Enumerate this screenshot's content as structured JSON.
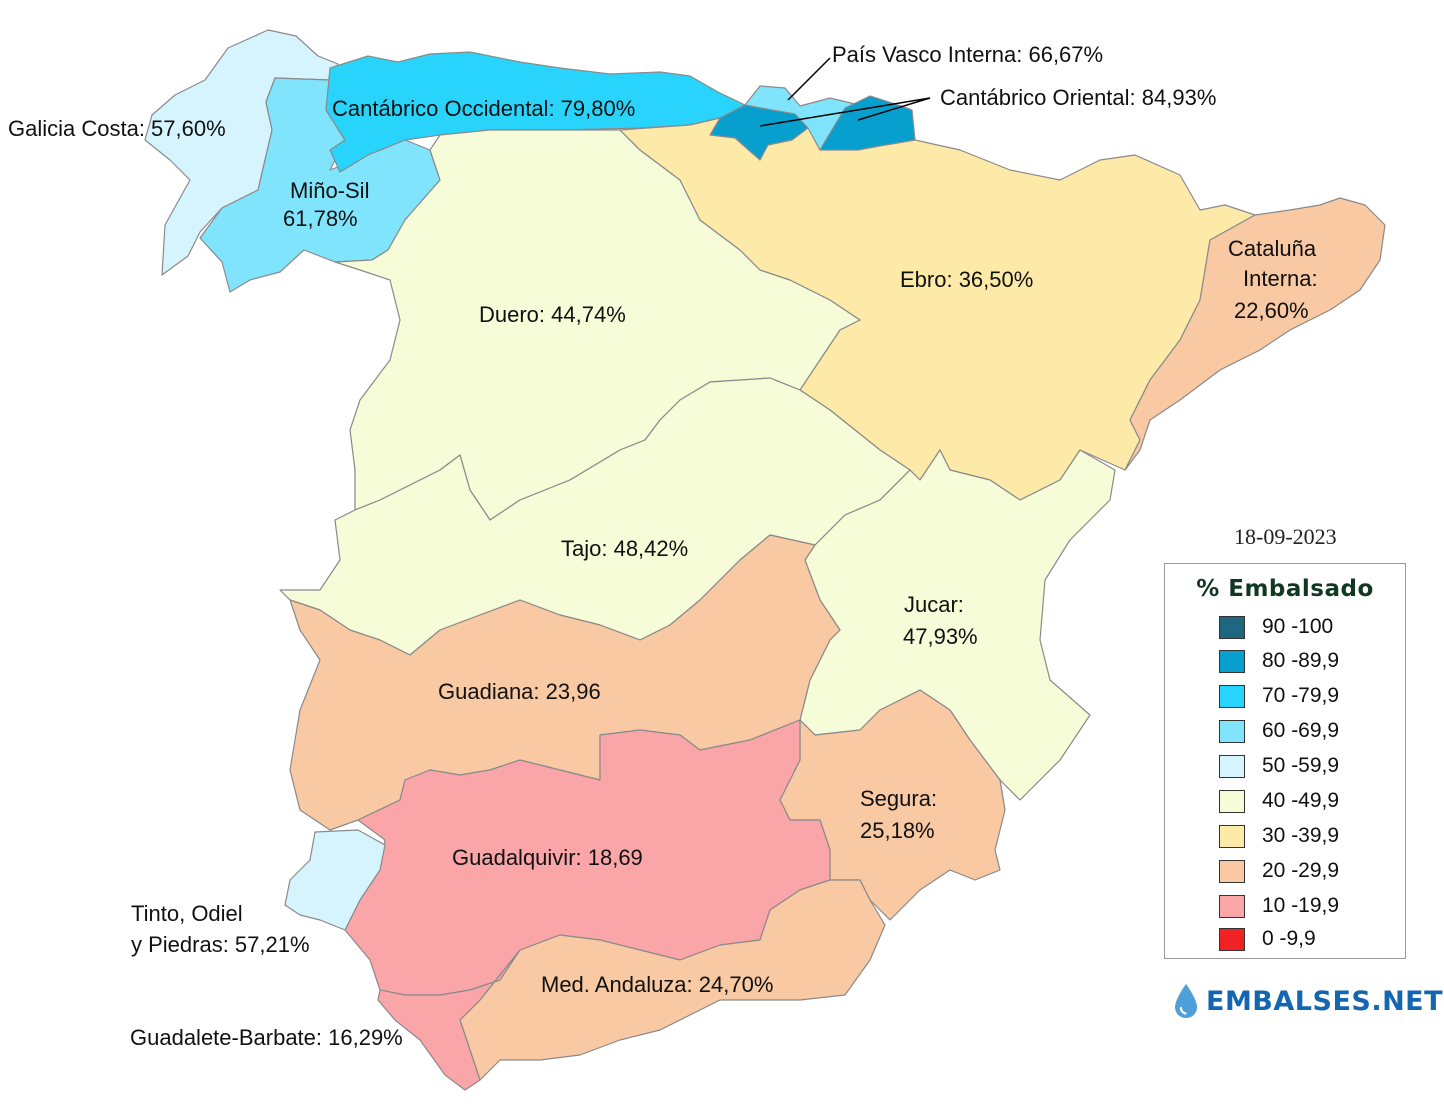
{
  "date": "18-09-2023",
  "legend": {
    "title": "% Embalsado",
    "items": [
      {
        "label": "90 -100",
        "color": "#1f6680"
      },
      {
        "label": "80 -89,9",
        "color": "#079fce"
      },
      {
        "label": "70 -79,9",
        "color": "#28d4fb"
      },
      {
        "label": "60 -69,9",
        "color": "#80e4fd"
      },
      {
        "label": "50 -59,9",
        "color": "#d6f4fd"
      },
      {
        "label": "40 -49,9",
        "color": "#f7fcd8"
      },
      {
        "label": "30 -39,9",
        "color": "#fdeaa9"
      },
      {
        "label": "20 -29,9",
        "color": "#f8c9a3"
      },
      {
        "label": "10 -19,9",
        "color": "#faa6a9"
      },
      {
        "label": "0 -9,9",
        "color": "#f02225"
      }
    ]
  },
  "regions": {
    "galicia_costa": {
      "label": "Galicia Costa: 57,60%",
      "value": 57.6,
      "color": "#d6f4fd"
    },
    "mino_sil": {
      "label_1": "Miño-Sil",
      "label_2": "61,78%",
      "value": 61.78,
      "color": "#80e4fd"
    },
    "cantabrico_occidental": {
      "label": "Cantábrico Occidental: 79,80%",
      "value": 79.8,
      "color": "#28d4fb"
    },
    "pais_vasco_interna": {
      "label": "País Vasco Interna: 66,67%",
      "value": 66.67,
      "color": "#80e4fd"
    },
    "cantabrico_oriental": {
      "label": "Cantábrico Oriental: 84,93%",
      "value": 84.93,
      "color": "#079fce"
    },
    "duero": {
      "label": "Duero: 44,74%",
      "value": 44.74,
      "color": "#f7fcd8"
    },
    "ebro": {
      "label": "Ebro: 36,50%",
      "value": 36.5,
      "color": "#fdeaa9"
    },
    "cataluna_interna": {
      "label_1": "Cataluña",
      "label_2": "Interna:",
      "label_3": "22,60%",
      "value": 22.6,
      "color": "#f8c9a3"
    },
    "tajo": {
      "label": "Tajo: 48,42%",
      "value": 48.42,
      "color": "#f7fcd8"
    },
    "jucar": {
      "label_1": "Jucar:",
      "label_2": "47,93%",
      "value": 47.93,
      "color": "#f7fcd8"
    },
    "guadiana": {
      "label": "Guadiana: 23,96",
      "value": 23.96,
      "color": "#f8c9a3"
    },
    "segura": {
      "label_1": "Segura:",
      "label_2": "25,18%",
      "value": 25.18,
      "color": "#f8c9a3"
    },
    "guadalquivir": {
      "label": "Guadalquivir: 18,69",
      "value": 18.69,
      "color": "#faa6a9"
    },
    "tinto_odiel_piedras": {
      "label_1": "Tinto, Odiel",
      "label_2": "y Piedras: 57,21%",
      "value": 57.21,
      "color": "#d6f4fd"
    },
    "med_andaluza": {
      "label": "Med. Andaluza: 24,70%",
      "value": 24.7,
      "color": "#f8c9a3"
    },
    "guadalete_barbate": {
      "label": "Guadalete-Barbate: 16,29%",
      "value": 16.29,
      "color": "#faa6a9"
    }
  },
  "brand": {
    "name": "EMBALSES.NET",
    "icon": "water-drop-icon",
    "color": "#1566b1"
  }
}
